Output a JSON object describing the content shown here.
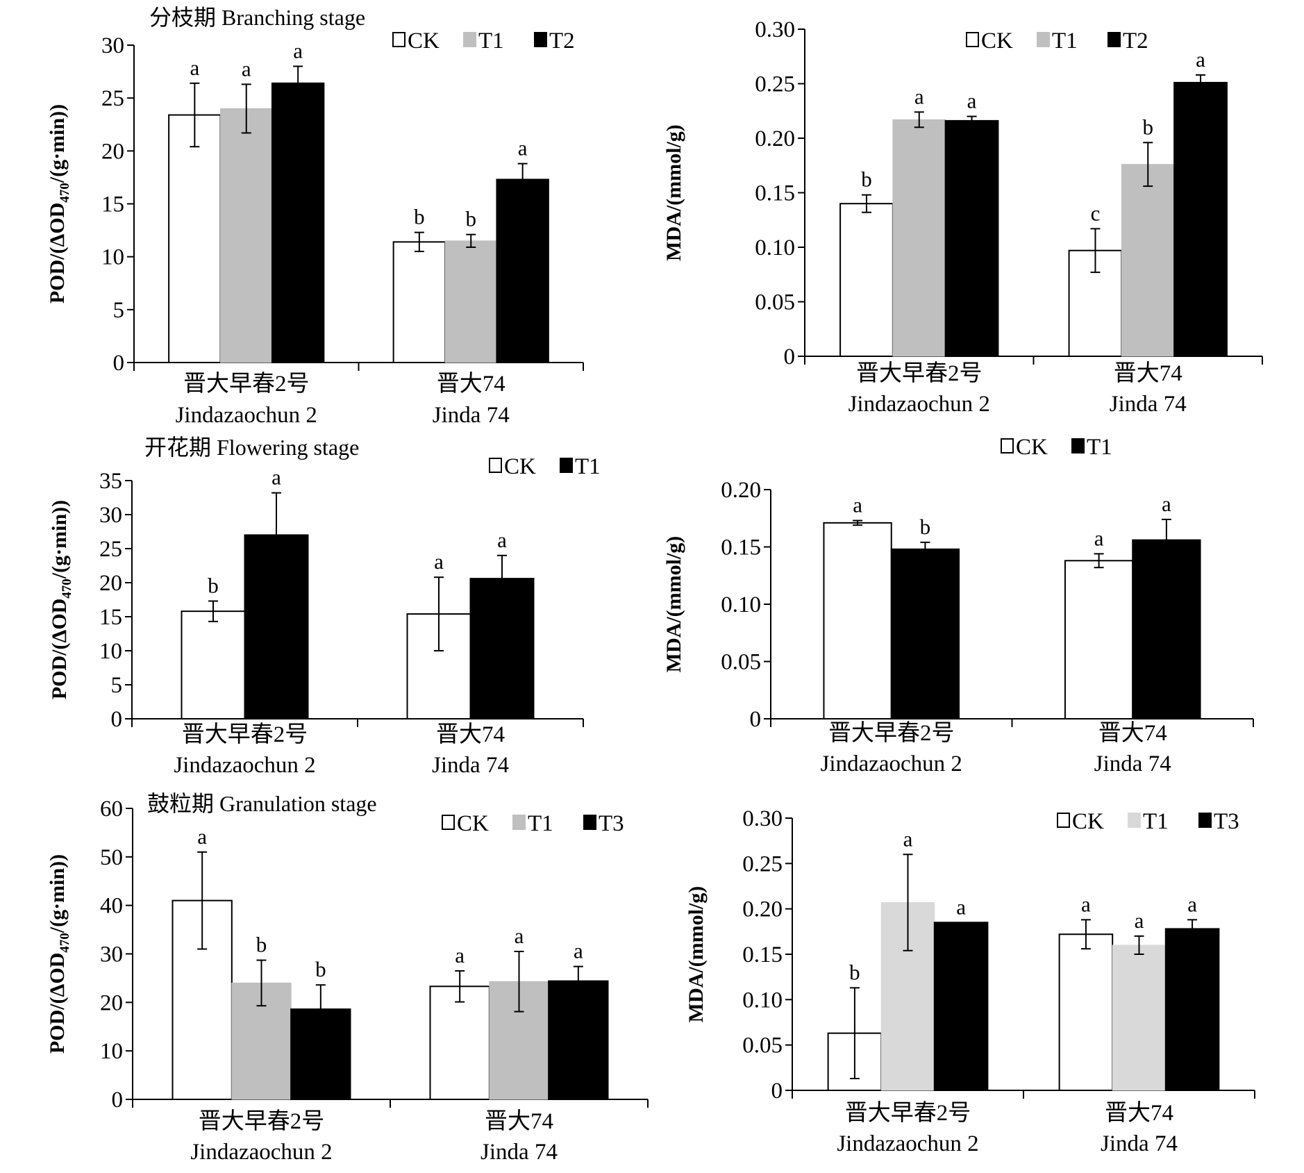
{
  "colors": {
    "CK": "#ffffff",
    "T1": "#bfbfbf",
    "T1_light": "#d9d9d9",
    "T2": "#000000",
    "T3": "#000000",
    "outline": "#000000"
  },
  "chart_data": [
    {
      "type": "bar",
      "title": "分枝期 Branching stage",
      "ylabel": {
        "pre": "POD/(ΔOD",
        "sub": "470",
        "post": "/(g·min))"
      },
      "categories": [
        [
          "晋大早春2号",
          "Jindazaochun 2"
        ],
        [
          "晋大74",
          "Jinda 74"
        ]
      ],
      "ylim": [
        0,
        30
      ],
      "yticks": [
        "0",
        "5",
        "10",
        "15",
        "20",
        "25",
        "30"
      ],
      "ytick_values": [
        0,
        5,
        10,
        15,
        20,
        25,
        30
      ],
      "legend": "top-right",
      "series": [
        {
          "name": "CK",
          "color": "#ffffff",
          "values": [
            23.4,
            11.4
          ],
          "errors": [
            3.0,
            0.9
          ],
          "letters": [
            "a",
            "b"
          ]
        },
        {
          "name": "T1",
          "color": "#bfbfbf",
          "values": [
            24.0,
            11.5
          ],
          "errors": [
            2.3,
            0.6
          ],
          "letters": [
            "a",
            "b"
          ]
        },
        {
          "name": "T2",
          "color": "#000000",
          "values": [
            26.4,
            17.3
          ],
          "errors": [
            1.6,
            1.5
          ],
          "letters": [
            "a",
            "a"
          ]
        }
      ]
    },
    {
      "type": "bar",
      "title": "",
      "ylabel": {
        "pre": "MDA/(mmol/g)",
        "sub": "",
        "post": ""
      },
      "categories": [
        [
          "晋大早春2号",
          "Jindazaochun 2"
        ],
        [
          "晋大74",
          "Jinda 74"
        ]
      ],
      "ylim": [
        0,
        0.3
      ],
      "yticks": [
        "0",
        "0.05",
        "0.10",
        "0.15",
        "0.20",
        "0.25",
        "0.30"
      ],
      "ytick_values": [
        0,
        0.05,
        0.1,
        0.15,
        0.2,
        0.25,
        0.3
      ],
      "legend": "top-right",
      "series": [
        {
          "name": "CK",
          "color": "#ffffff",
          "values": [
            0.14,
            0.097
          ],
          "errors": [
            0.008,
            0.02
          ],
          "letters": [
            "b",
            "c"
          ]
        },
        {
          "name": "T1",
          "color": "#bfbfbf",
          "values": [
            0.217,
            0.176
          ],
          "errors": [
            0.007,
            0.02
          ],
          "letters": [
            "a",
            "b"
          ]
        },
        {
          "name": "T2",
          "color": "#000000",
          "values": [
            0.216,
            0.251
          ],
          "errors": [
            0.004,
            0.007
          ],
          "letters": [
            "a",
            "a"
          ]
        }
      ]
    },
    {
      "type": "bar",
      "title": "开花期 Flowering stage",
      "ylabel": {
        "pre": "POD/(ΔOD",
        "sub": "470",
        "post": "/(g·min))"
      },
      "categories": [
        [
          "晋大早春2号",
          "Jindazaochun 2"
        ],
        [
          "晋大74",
          "Jinda 74"
        ]
      ],
      "ylim": [
        0,
        35
      ],
      "yticks": [
        "0",
        "5",
        "10",
        "15",
        "20",
        "25",
        "30",
        "35"
      ],
      "ytick_values": [
        0,
        5,
        10,
        15,
        20,
        25,
        30,
        35
      ],
      "legend": "top-right",
      "series": [
        {
          "name": "CK",
          "color": "#ffffff",
          "values": [
            15.8,
            15.4
          ],
          "errors": [
            1.5,
            5.4
          ],
          "letters": [
            "b",
            "a"
          ]
        },
        {
          "name": "T1",
          "color": "#000000",
          "values": [
            27.0,
            20.6
          ],
          "errors": [
            6.2,
            3.4
          ],
          "letters": [
            "a",
            "a"
          ]
        }
      ]
    },
    {
      "type": "bar",
      "title": "",
      "ylabel": {
        "pre": "MDA/(mmol/g)",
        "sub": "",
        "post": ""
      },
      "categories": [
        [
          "晋大早春2号",
          "Jindazaochun 2"
        ],
        [
          "晋大74",
          "Jinda 74"
        ]
      ],
      "ylim": [
        0,
        0.2
      ],
      "yticks": [
        "0",
        "0.05",
        "0.10",
        "0.15",
        "0.20"
      ],
      "ytick_values": [
        0,
        0.05,
        0.1,
        0.15,
        0.2
      ],
      "legend": "top-right",
      "series": [
        {
          "name": "CK",
          "color": "#ffffff",
          "values": [
            0.171,
            0.138
          ],
          "errors": [
            0.002,
            0.006
          ],
          "letters": [
            "a",
            "a"
          ]
        },
        {
          "name": "T1",
          "color": "#000000",
          "values": [
            0.148,
            0.156
          ],
          "errors": [
            0.006,
            0.018
          ],
          "letters": [
            "b",
            "a"
          ]
        }
      ]
    },
    {
      "type": "bar",
      "title": "鼓粒期 Granulation stage",
      "ylabel": {
        "pre": "POD/(ΔOD",
        "sub": "470",
        "post": "/(g·min))"
      },
      "categories": [
        [
          "晋大早春2号",
          "Jindazaochun 2"
        ],
        [
          "晋大74",
          "Jinda 74"
        ]
      ],
      "ylim": [
        0,
        60
      ],
      "yticks": [
        "0",
        "10",
        "20",
        "30",
        "40",
        "50",
        "60"
      ],
      "ytick_values": [
        0,
        10,
        20,
        30,
        40,
        50,
        60
      ],
      "legend": "top-right",
      "series": [
        {
          "name": "CK",
          "color": "#ffffff",
          "values": [
            41.0,
            23.3
          ],
          "errors": [
            10.0,
            3.2
          ],
          "letters": [
            "a",
            "a"
          ]
        },
        {
          "name": "T1",
          "color": "#bfbfbf",
          "values": [
            24.0,
            24.3
          ],
          "errors": [
            4.7,
            6.2
          ],
          "letters": [
            "b",
            "a"
          ]
        },
        {
          "name": "T3",
          "color": "#000000",
          "values": [
            18.6,
            24.4
          ],
          "errors": [
            5.0,
            3.0
          ],
          "letters": [
            "b",
            "a"
          ]
        }
      ]
    },
    {
      "type": "bar",
      "title": "",
      "ylabel": {
        "pre": "MDA/(mmol/g)",
        "sub": "",
        "post": ""
      },
      "categories": [
        [
          "晋大早春2号",
          "Jindazaochun 2"
        ],
        [
          "晋大74",
          "Jinda 74"
        ]
      ],
      "ylim": [
        0,
        0.3
      ],
      "yticks": [
        "0",
        "0.05",
        "0.10",
        "0.15",
        "0.20",
        "0.25",
        "0.30"
      ],
      "ytick_values": [
        0,
        0.05,
        0.1,
        0.15,
        0.2,
        0.25,
        0.3
      ],
      "legend": "top-right",
      "series": [
        {
          "name": "CK",
          "color": "#ffffff",
          "values": [
            0.063,
            0.172
          ],
          "errors": [
            0.05,
            0.016
          ],
          "letters": [
            "b",
            "a"
          ]
        },
        {
          "name": "T1",
          "color": "#d9d9d9",
          "values": [
            0.207,
            0.16
          ],
          "errors": [
            0.053,
            0.01
          ],
          "letters": [
            "a",
            "a"
          ]
        },
        {
          "name": "T3",
          "color": "#000000",
          "values": [
            0.185,
            0.178
          ],
          "errors": [
            0,
            0.01
          ],
          "letters": [
            "a",
            "a"
          ]
        }
      ]
    }
  ]
}
